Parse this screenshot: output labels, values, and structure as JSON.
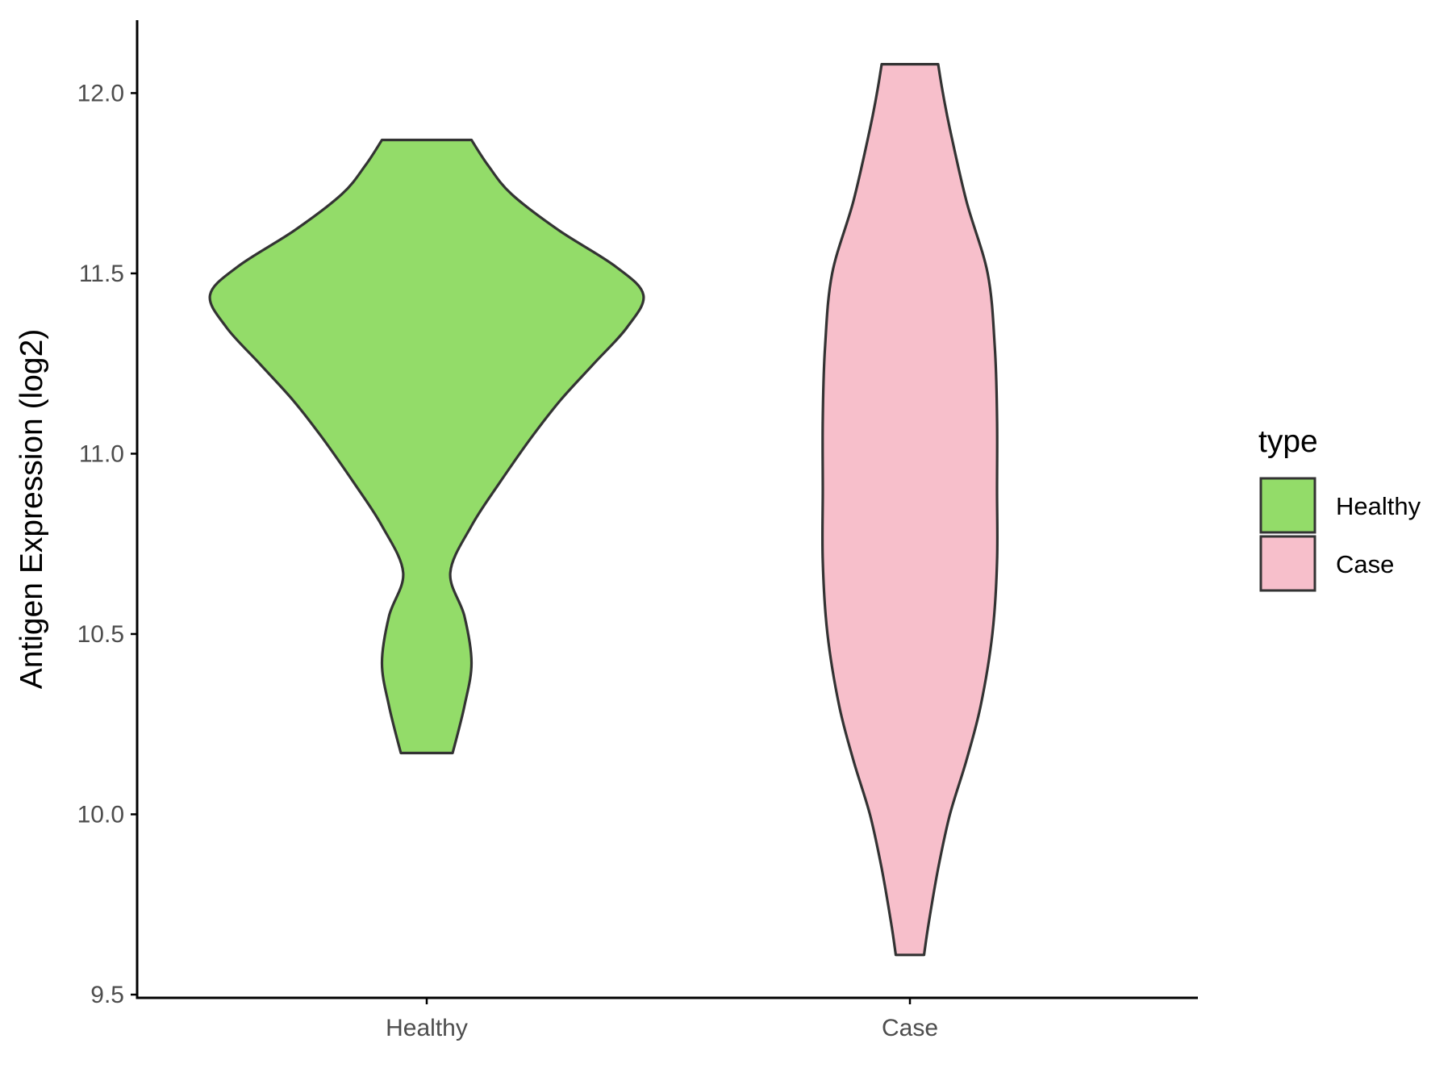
{
  "chart_data": {
    "type": "violin",
    "xlabel": "",
    "ylabel": "Antigen Expression (log2)",
    "ylim": [
      9.5,
      12.2
    ],
    "yticks": [
      "9.5",
      "10.0",
      "10.5",
      "11.0",
      "11.5",
      "12.0"
    ],
    "categories": [
      "Healthy",
      "Case"
    ],
    "grid": false,
    "legend": {
      "title": "type",
      "position": "right",
      "items": [
        {
          "label": "Healthy",
          "color": "#93dc69"
        },
        {
          "label": "Case",
          "color": "#f7bfcb"
        }
      ]
    },
    "series": [
      {
        "name": "Healthy",
        "color": "#93dc69",
        "min": 10.17,
        "max": 11.87,
        "density": [
          [
            10.17,
            0.11
          ],
          [
            10.3,
            0.16
          ],
          [
            10.42,
            0.19
          ],
          [
            10.55,
            0.16
          ],
          [
            10.67,
            0.1
          ],
          [
            10.8,
            0.19
          ],
          [
            10.92,
            0.31
          ],
          [
            11.05,
            0.45
          ],
          [
            11.15,
            0.57
          ],
          [
            11.25,
            0.71
          ],
          [
            11.35,
            0.85
          ],
          [
            11.44,
            0.92
          ],
          [
            11.52,
            0.8
          ],
          [
            11.62,
            0.56
          ],
          [
            11.72,
            0.36
          ],
          [
            11.8,
            0.26
          ],
          [
            11.87,
            0.19
          ]
        ]
      },
      {
        "name": "Case",
        "color": "#f7bfcb",
        "min": 9.61,
        "max": 12.08,
        "density": [
          [
            9.61,
            0.06
          ],
          [
            9.7,
            0.08
          ],
          [
            9.85,
            0.12
          ],
          [
            10.0,
            0.17
          ],
          [
            10.15,
            0.24
          ],
          [
            10.3,
            0.3
          ],
          [
            10.5,
            0.35
          ],
          [
            10.7,
            0.37
          ],
          [
            10.9,
            0.37
          ],
          [
            11.1,
            0.37
          ],
          [
            11.3,
            0.36
          ],
          [
            11.5,
            0.33
          ],
          [
            11.7,
            0.24
          ],
          [
            11.9,
            0.17
          ],
          [
            12.0,
            0.14
          ],
          [
            12.08,
            0.12
          ]
        ]
      }
    ]
  }
}
